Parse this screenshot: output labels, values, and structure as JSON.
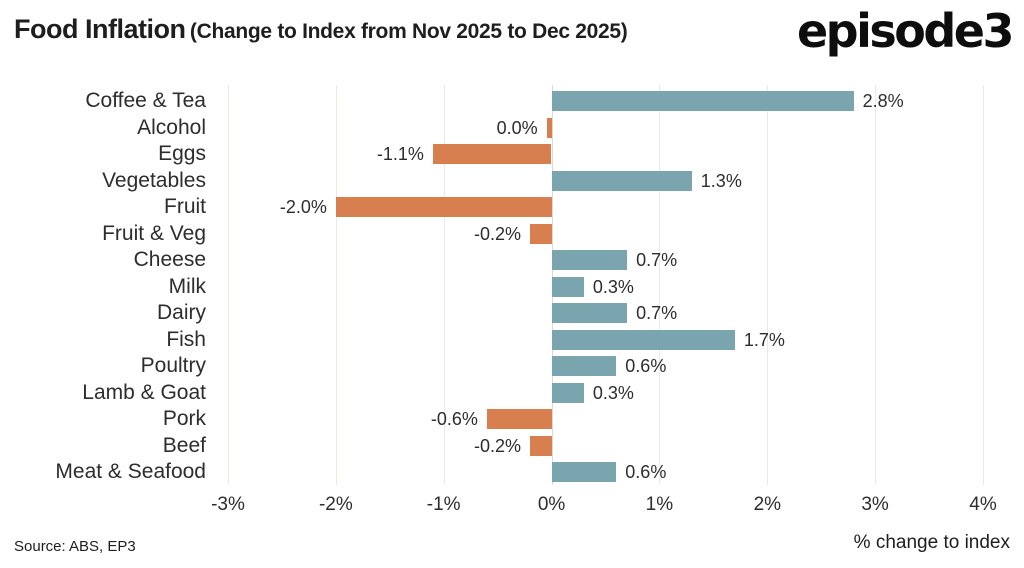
{
  "header": {
    "title": "Food Inflation",
    "subtitle": "(Change to Index from Nov 2025 to Dec 2025)",
    "logo": "episode3"
  },
  "footer": {
    "source": "Source: ABS, EP3",
    "xlabel": "% change to index"
  },
  "chart_data": {
    "type": "bar",
    "orientation": "horizontal",
    "title": "Food Inflation (Change to Index from Nov 2025 to Dec 2025)",
    "xlabel": "% change to index",
    "xlim": [
      -3,
      4
    ],
    "grid": true,
    "legend_position": "none",
    "x_tick_values": [
      -3,
      -2,
      -1,
      0,
      1,
      2,
      3,
      4
    ],
    "x_tick_labels": [
      "-3%",
      "-2%",
      "-1%",
      "0%",
      "1%",
      "2%",
      "3%",
      "4%"
    ],
    "categories": [
      "Coffee & Tea",
      "Alcohol",
      "Eggs",
      "Vegetables",
      "Fruit",
      "Fruit & Veg",
      "Cheese",
      "Milk",
      "Dairy",
      "Fish",
      "Poultry",
      "Lamb & Goat",
      "Pork",
      "Beef",
      "Meat & Seafood"
    ],
    "values": [
      2.8,
      0.0,
      -1.1,
      1.3,
      -2.0,
      -0.2,
      0.7,
      0.3,
      0.7,
      1.7,
      0.6,
      0.3,
      -0.6,
      -0.2,
      0.6
    ],
    "value_labels": [
      "2.8%",
      "0.0%",
      "-1.1%",
      "1.3%",
      "-2.0%",
      "-0.2%",
      "0.7%",
      "0.3%",
      "0.7%",
      "1.7%",
      "0.6%",
      "0.3%",
      "-0.6%",
      "-0.2%",
      "0.6%"
    ],
    "signs": [
      1,
      -1,
      -1,
      1,
      -1,
      -1,
      1,
      1,
      1,
      1,
      1,
      1,
      -1,
      -1,
      1
    ],
    "colors": {
      "positive": "#7aa5af",
      "negative": "#d87f50",
      "gridline": "#ece9e0",
      "zero_line": "#dcd9d0",
      "text": "#2d2d2d",
      "title": "#1e1e1e",
      "logo": "#0d0d0d"
    }
  }
}
